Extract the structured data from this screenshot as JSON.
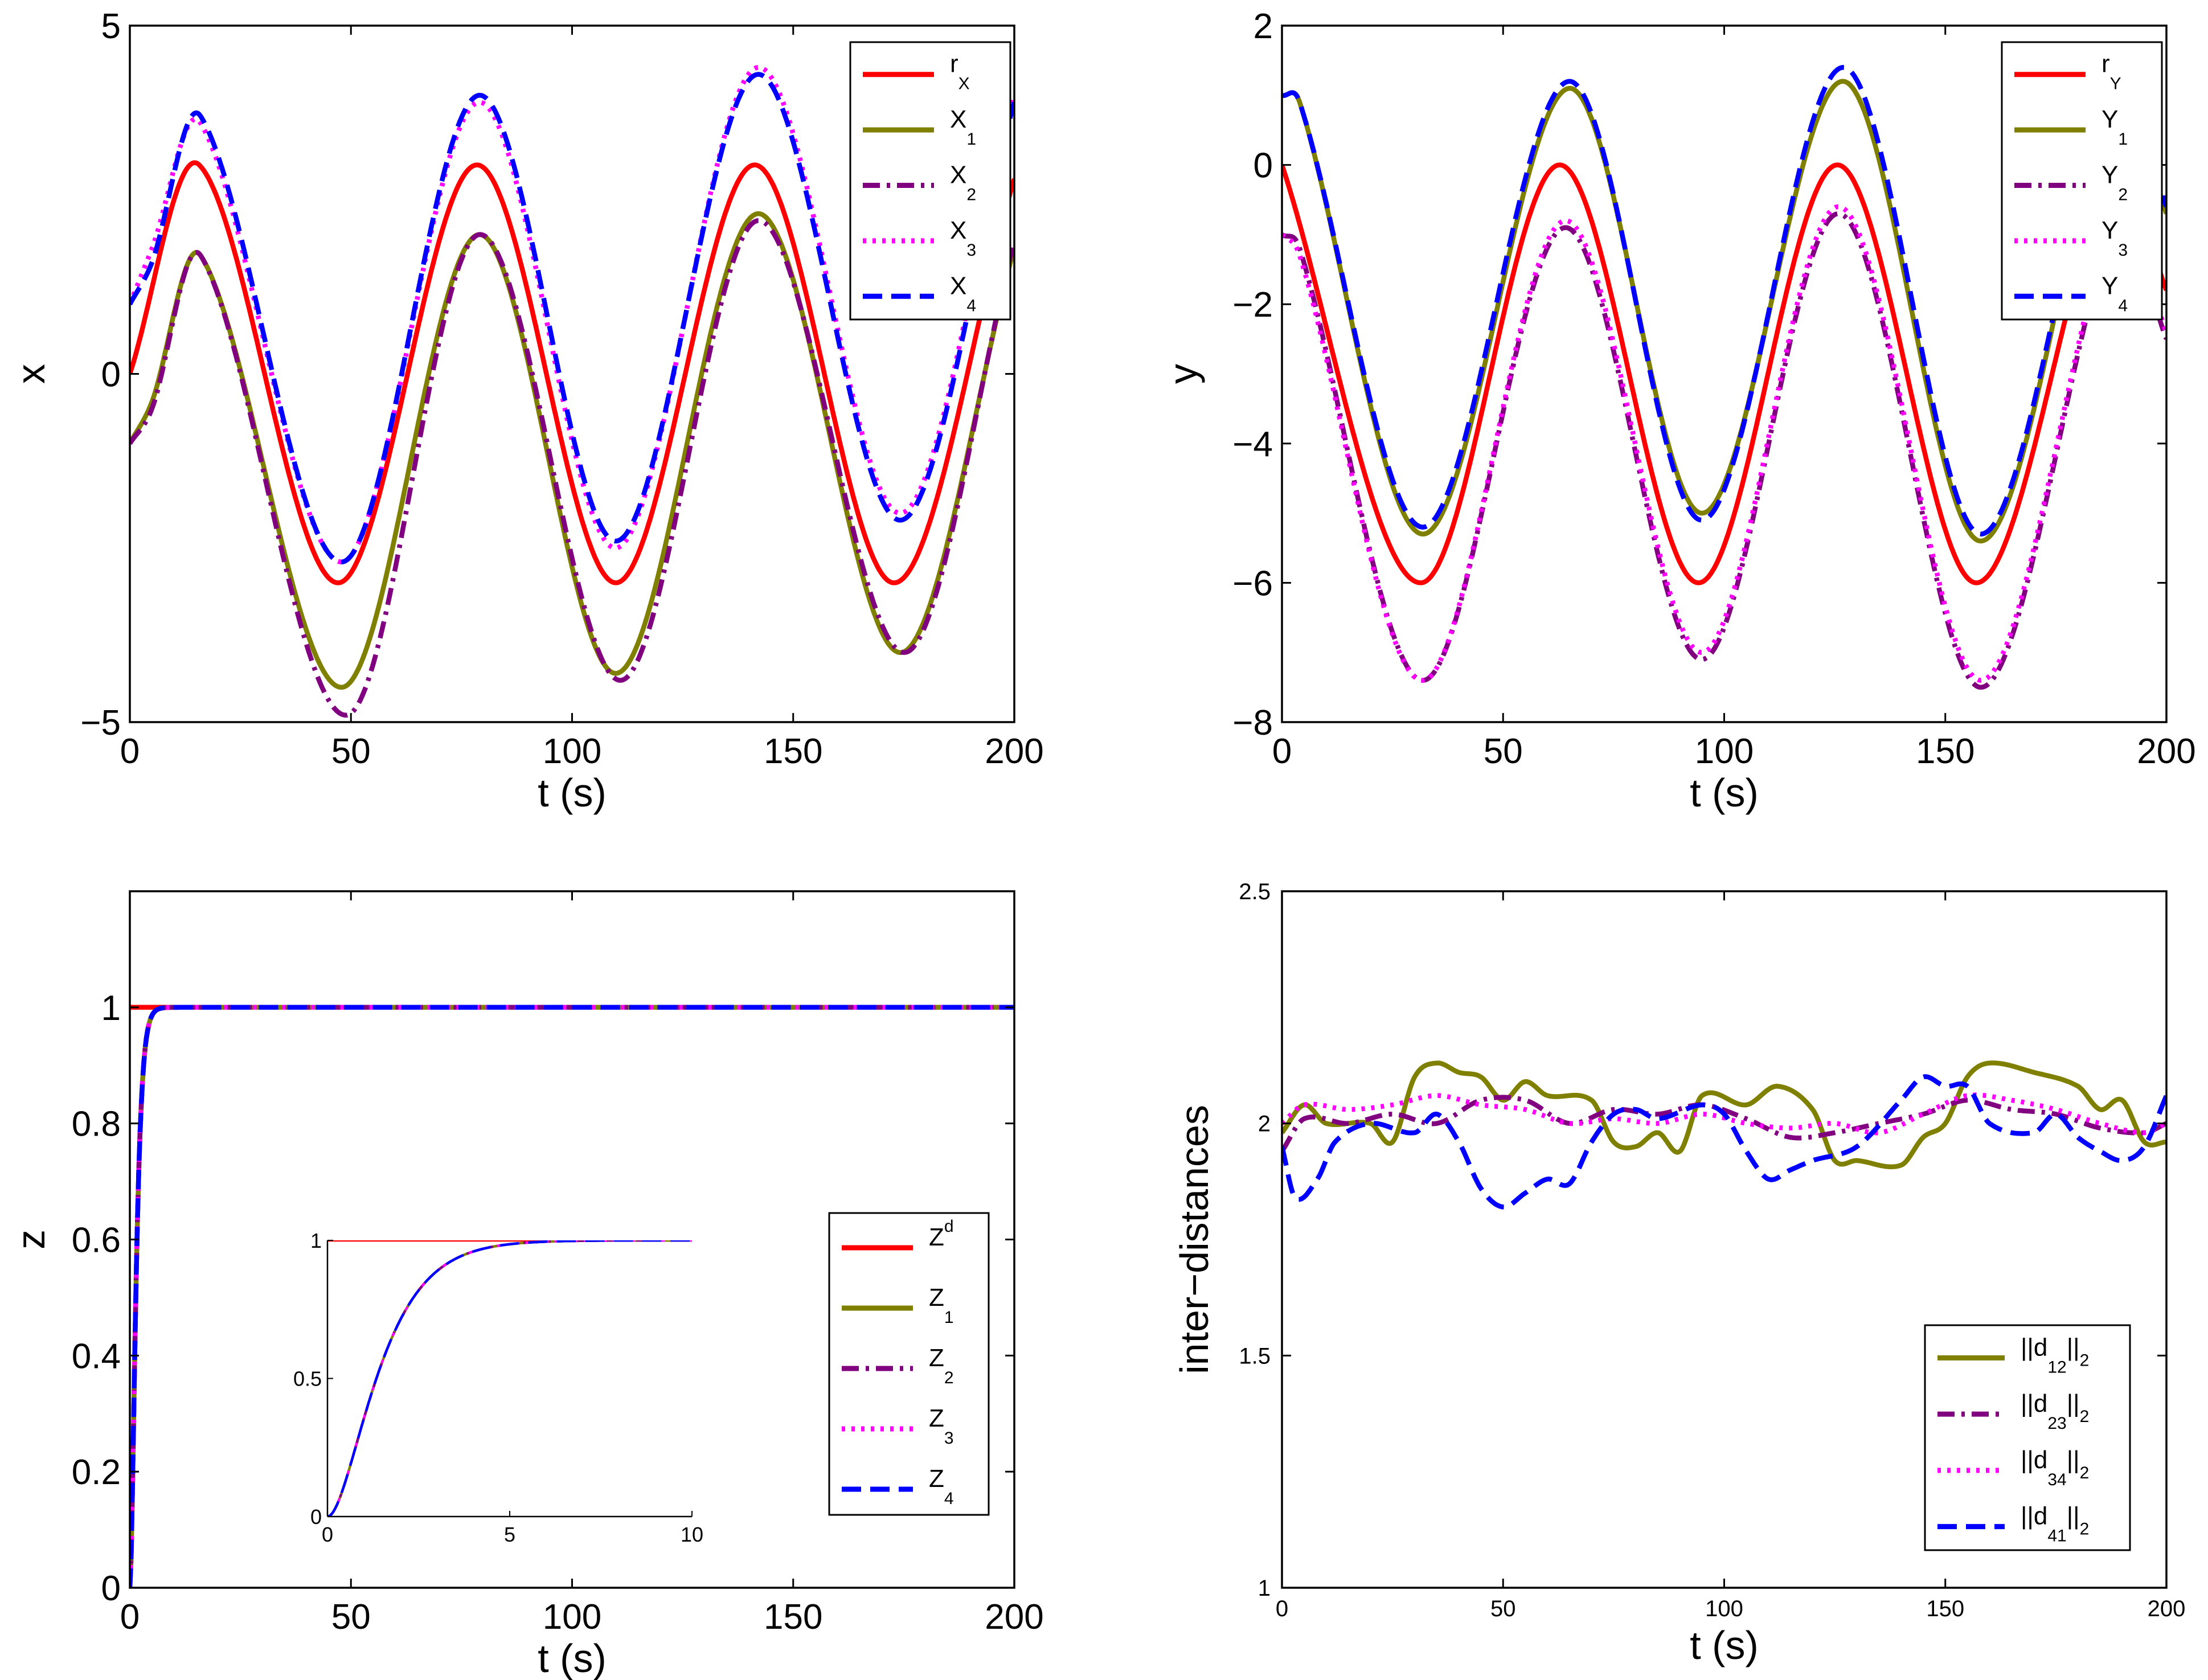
{
  "figure": {
    "description_free": true
  },
  "chart_data": [
    {
      "id": "x",
      "type": "line",
      "xlabel": "t (s)",
      "ylabel": "x",
      "xlim": [
        0,
        200
      ],
      "ylim": [
        -5,
        5
      ],
      "xticks": [
        0,
        50,
        100,
        150,
        200
      ],
      "yticks": [
        -5,
        0,
        5
      ],
      "legend_position": "top-right",
      "reference": {
        "type": "sine",
        "amplitude": 3,
        "period": 62.8,
        "offset": 0,
        "phase": 0
      },
      "series": [
        {
          "name": "r",
          "sub": "X",
          "color": "#ff0000",
          "style": "solid",
          "anchors": [
            [
              0,
              0
            ],
            [
              15.7,
              3
            ],
            [
              47.1,
              -3
            ],
            [
              78.5,
              3
            ],
            [
              109.9,
              -3
            ],
            [
              141.3,
              3
            ],
            [
              172.7,
              -3
            ],
            [
              200,
              2.8
            ]
          ]
        },
        {
          "name": "X",
          "sub": "1",
          "color": "#808000",
          "style": "solid",
          "anchors": [
            [
              0,
              -1
            ],
            [
              5,
              -0.4
            ],
            [
              16,
              1.7
            ],
            [
              48,
              -4.5
            ],
            [
              79,
              2
            ],
            [
              110,
              -4.3
            ],
            [
              142,
              2.3
            ],
            [
              174,
              -4
            ],
            [
              200,
              1.8
            ]
          ]
        },
        {
          "name": "X",
          "sub": "2",
          "color": "#800080",
          "style": "dashdot",
          "anchors": [
            [
              0,
              -1
            ],
            [
              5,
              -0.5
            ],
            [
              16,
              1.7
            ],
            [
              49,
              -4.9
            ],
            [
              79,
              2
            ],
            [
              111,
              -4.4
            ],
            [
              142,
              2.2
            ],
            [
              175,
              -4
            ],
            [
              200,
              1.9
            ]
          ]
        },
        {
          "name": "X",
          "sub": "3",
          "color": "#ff00ff",
          "style": "dotted",
          "anchors": [
            [
              0,
              1
            ],
            [
              5,
              1.8
            ],
            [
              16,
              3.6
            ],
            [
              48,
              -2.7
            ],
            [
              79,
              3.9
            ],
            [
              110,
              -2.5
            ],
            [
              142,
              4.4
            ],
            [
              174,
              -2
            ],
            [
              200,
              4
            ]
          ]
        },
        {
          "name": "X",
          "sub": "4",
          "color": "#0000ff",
          "style": "dashed",
          "anchors": [
            [
              0,
              1
            ],
            [
              5,
              1.6
            ],
            [
              16,
              3.7
            ],
            [
              48,
              -2.7
            ],
            [
              79,
              4
            ],
            [
              110,
              -2.4
            ],
            [
              142,
              4.3
            ],
            [
              174,
              -2.1
            ],
            [
              200,
              3.9
            ]
          ]
        }
      ]
    },
    {
      "id": "y",
      "type": "line",
      "xlabel": "t (s)",
      "ylabel": "y",
      "xlim": [
        0,
        200
      ],
      "ylim": [
        -8,
        2
      ],
      "xticks": [
        0,
        50,
        100,
        150,
        200
      ],
      "yticks": [
        -8,
        -6,
        -4,
        -2,
        0,
        2
      ],
      "legend_position": "top-right",
      "series": [
        {
          "name": "r",
          "sub": "Y",
          "color": "#ff0000",
          "style": "solid",
          "anchors": [
            [
              0,
              0
            ],
            [
              31.4,
              -6
            ],
            [
              62.8,
              0
            ],
            [
              94.2,
              -6
            ],
            [
              125.6,
              0
            ],
            [
              157,
              -6
            ],
            [
              188.4,
              0
            ],
            [
              200,
              -1.8
            ]
          ]
        },
        {
          "name": "Y",
          "sub": "1",
          "color": "#808000",
          "style": "solid",
          "anchors": [
            [
              0,
              1
            ],
            [
              4,
              0.9
            ],
            [
              32,
              -5.3
            ],
            [
              65,
              1.1
            ],
            [
              95,
              -5
            ],
            [
              127,
              1.2
            ],
            [
              158,
              -5.4
            ],
            [
              189,
              1.2
            ],
            [
              200,
              -0.7
            ]
          ]
        },
        {
          "name": "Y",
          "sub": "2",
          "color": "#800080",
          "style": "dashdot",
          "anchors": [
            [
              0,
              -1
            ],
            [
              4,
              -1.2
            ],
            [
              32,
              -7.4
            ],
            [
              64,
              -0.9
            ],
            [
              95,
              -7.1
            ],
            [
              126,
              -0.7
            ],
            [
              158,
              -7.5
            ],
            [
              189,
              -0.8
            ],
            [
              200,
              -2.5
            ]
          ]
        },
        {
          "name": "Y",
          "sub": "3",
          "color": "#ff00ff",
          "style": "dotted",
          "anchors": [
            [
              0,
              -1
            ],
            [
              4,
              -1.3
            ],
            [
              32,
              -7.4
            ],
            [
              64,
              -0.8
            ],
            [
              95,
              -7
            ],
            [
              126,
              -0.6
            ],
            [
              158,
              -7.4
            ],
            [
              189,
              -0.7
            ],
            [
              200,
              -2.4
            ]
          ]
        },
        {
          "name": "Y",
          "sub": "4",
          "color": "#0000ff",
          "style": "dashed",
          "anchors": [
            [
              0,
              1
            ],
            [
              4,
              0.9
            ],
            [
              32,
              -5.2
            ],
            [
              65,
              1.2
            ],
            [
              95,
              -5.1
            ],
            [
              127,
              1.4
            ],
            [
              158,
              -5.3
            ],
            [
              189,
              1.3
            ],
            [
              200,
              -0.6
            ]
          ]
        }
      ]
    },
    {
      "id": "z",
      "type": "line",
      "xlabel": "t (s)",
      "ylabel": "z",
      "xlim": [
        0,
        200
      ],
      "ylim": [
        0,
        1.2
      ],
      "xticks": [
        0,
        50,
        100,
        150,
        200
      ],
      "yticks": [
        0,
        0.2,
        0.4,
        0.6,
        0.8,
        1
      ],
      "legend_position": "right",
      "series": [
        {
          "name": "Z",
          "sup": "d",
          "color": "#ff0000",
          "style": "solid",
          "model": "step",
          "value": 1
        },
        {
          "name": "Z",
          "sub": "1",
          "color": "#808000",
          "style": "solid",
          "model": "rise",
          "k": 1.25
        },
        {
          "name": "Z",
          "sub": "2",
          "color": "#800080",
          "style": "dashdot",
          "model": "rise",
          "k": 1.25
        },
        {
          "name": "Z",
          "sub": "3",
          "color": "#ff00ff",
          "style": "dotted",
          "model": "rise",
          "k": 1.25
        },
        {
          "name": "Z",
          "sub": "4",
          "color": "#0000ff",
          "style": "dashed",
          "model": "rise",
          "k": 1.25
        }
      ],
      "inset": {
        "xlim": [
          0,
          10
        ],
        "ylim": [
          0,
          1
        ],
        "xticks": [
          0,
          5,
          10
        ],
        "yticks": [
          0,
          0.5,
          1
        ]
      }
    },
    {
      "id": "d",
      "type": "line",
      "xlabel": "t (s)",
      "ylabel": "inter−distances",
      "xlim": [
        0,
        200
      ],
      "ylim": [
        1,
        2.5
      ],
      "xticks": [
        0,
        50,
        100,
        150,
        200
      ],
      "yticks": [
        1,
        1.5,
        2,
        2.5
      ],
      "legend_position": "bottom-right",
      "series": [
        {
          "name": "||d",
          "sub": "12",
          "tail": "||",
          "tailsub": "2",
          "color": "#808000",
          "style": "solid",
          "anchors": [
            [
              0,
              1.98
            ],
            [
              5,
              2.04
            ],
            [
              10,
              2.0
            ],
            [
              20,
              2.0
            ],
            [
              25,
              1.96
            ],
            [
              30,
              2.1
            ],
            [
              35,
              2.13
            ],
            [
              40,
              2.11
            ],
            [
              45,
              2.1
            ],
            [
              50,
              2.05
            ],
            [
              55,
              2.09
            ],
            [
              60,
              2.06
            ],
            [
              70,
              2.05
            ],
            [
              75,
              1.96
            ],
            [
              80,
              1.95
            ],
            [
              85,
              1.98
            ],
            [
              90,
              1.94
            ],
            [
              95,
              2.06
            ],
            [
              105,
              2.04
            ],
            [
              112,
              2.08
            ],
            [
              120,
              2.03
            ],
            [
              125,
              1.92
            ],
            [
              130,
              1.92
            ],
            [
              140,
              1.91
            ],
            [
              145,
              1.97
            ],
            [
              150,
              2.0
            ],
            [
              155,
              2.1
            ],
            [
              160,
              2.13
            ],
            [
              170,
              2.11
            ],
            [
              180,
              2.08
            ],
            [
              185,
              2.03
            ],
            [
              190,
              2.05
            ],
            [
              195,
              1.96
            ],
            [
              200,
              1.96
            ]
          ]
        },
        {
          "name": "||d",
          "sub": "23",
          "tail": "||",
          "tailsub": "2",
          "color": "#800080",
          "style": "dashdot",
          "anchors": [
            [
              0,
              1.94
            ],
            [
              5,
              2.01
            ],
            [
              15,
              2.0
            ],
            [
              25,
              2.02
            ],
            [
              35,
              2.0
            ],
            [
              45,
              2.05
            ],
            [
              55,
              2.05
            ],
            [
              65,
              2.0
            ],
            [
              75,
              2.03
            ],
            [
              85,
              2.02
            ],
            [
              95,
              2.04
            ],
            [
              105,
              2.01
            ],
            [
              115,
              1.97
            ],
            [
              125,
              1.98
            ],
            [
              135,
              2.0
            ],
            [
              145,
              2.02
            ],
            [
              155,
              2.05
            ],
            [
              165,
              2.03
            ],
            [
              175,
              2.02
            ],
            [
              185,
              1.99
            ],
            [
              195,
              1.98
            ],
            [
              200,
              2.0
            ]
          ]
        },
        {
          "name": "||d",
          "sub": "34",
          "tail": "||",
          "tailsub": "2",
          "color": "#ff00ff",
          "style": "dotted",
          "anchors": [
            [
              0,
              2.0
            ],
            [
              5,
              2.04
            ],
            [
              15,
              2.03
            ],
            [
              25,
              2.04
            ],
            [
              35,
              2.06
            ],
            [
              45,
              2.04
            ],
            [
              55,
              2.03
            ],
            [
              65,
              2.0
            ],
            [
              75,
              2.01
            ],
            [
              85,
              2.0
            ],
            [
              95,
              2.02
            ],
            [
              105,
              2.0
            ],
            [
              115,
              1.99
            ],
            [
              125,
              2.0
            ],
            [
              135,
              1.98
            ],
            [
              145,
              2.02
            ],
            [
              155,
              2.06
            ],
            [
              165,
              2.05
            ],
            [
              175,
              2.03
            ],
            [
              185,
              2.0
            ],
            [
              195,
              1.98
            ],
            [
              200,
              2.0
            ]
          ]
        },
        {
          "name": "||d",
          "sub": "41",
          "tail": "||",
          "tailsub": "2",
          "color": "#0000ff",
          "style": "dashed",
          "anchors": [
            [
              0,
              1.95
            ],
            [
              3,
              1.84
            ],
            [
              8,
              1.88
            ],
            [
              12,
              1.96
            ],
            [
              20,
              2.0
            ],
            [
              30,
              1.98
            ],
            [
              35,
              2.02
            ],
            [
              40,
              1.96
            ],
            [
              45,
              1.86
            ],
            [
              50,
              1.82
            ],
            [
              55,
              1.85
            ],
            [
              60,
              1.88
            ],
            [
              65,
              1.87
            ],
            [
              70,
              1.96
            ],
            [
              75,
              2.02
            ],
            [
              80,
              2.03
            ],
            [
              85,
              2.01
            ],
            [
              95,
              2.04
            ],
            [
              100,
              2.02
            ],
            [
              105,
              1.94
            ],
            [
              110,
              1.88
            ],
            [
              115,
              1.9
            ],
            [
              120,
              1.92
            ],
            [
              130,
              1.95
            ],
            [
              140,
              2.05
            ],
            [
              145,
              2.1
            ],
            [
              150,
              2.08
            ],
            [
              155,
              2.08
            ],
            [
              160,
              2.0
            ],
            [
              170,
              1.98
            ],
            [
              175,
              2.02
            ],
            [
              180,
              1.97
            ],
            [
              185,
              1.94
            ],
            [
              190,
              1.92
            ],
            [
              195,
              1.95
            ],
            [
              200,
              2.06
            ]
          ]
        }
      ]
    }
  ]
}
